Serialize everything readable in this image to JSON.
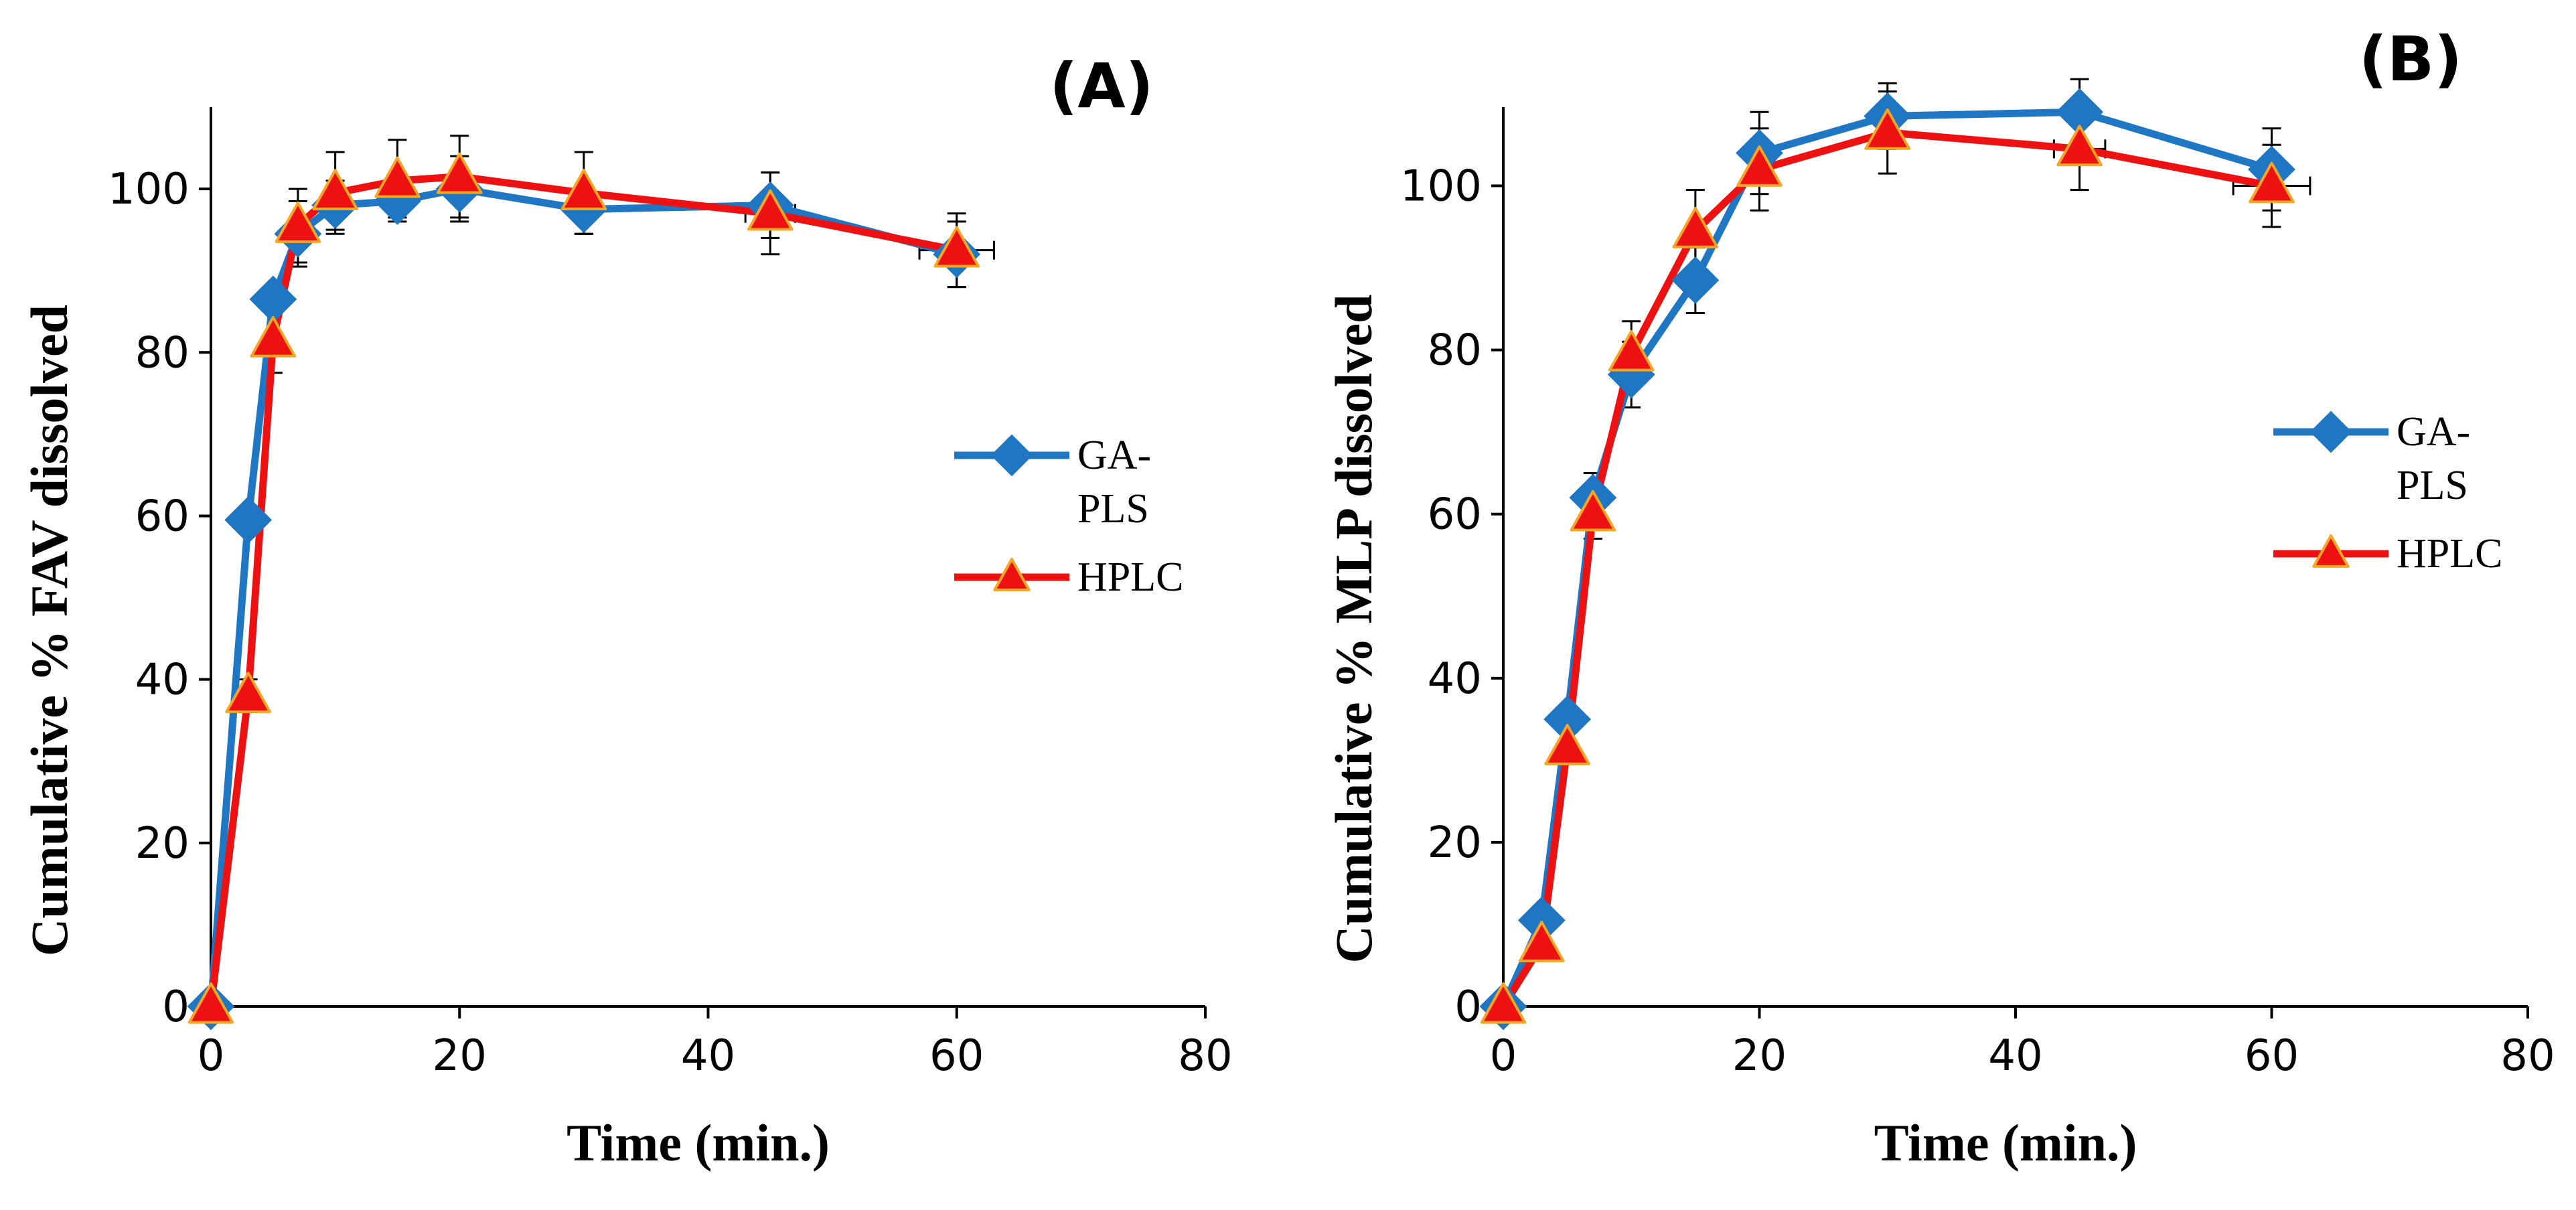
{
  "chart_data": [
    {
      "type": "line",
      "panel_label": "(A)",
      "title": "",
      "xlabel": "Time (min.)",
      "ylabel": "Cumulative % FAV dissolved",
      "xlim": [
        0,
        80
      ],
      "ylim": [
        0,
        110
      ],
      "x_ticks": [
        0,
        20,
        40,
        60,
        80
      ],
      "y_ticks": [
        0,
        20,
        40,
        60,
        80,
        100
      ],
      "grid": false,
      "legend": {
        "position": "right",
        "entries": [
          "GA-PLS",
          "HPLC"
        ]
      },
      "series": [
        {
          "name": "GA-PLS",
          "legend_lines": [
            "GA-",
            "PLS"
          ],
          "color": "#1f77c4",
          "marker": "diamond",
          "x": [
            0,
            3,
            5,
            7,
            10,
            15,
            20,
            30,
            45,
            60
          ],
          "values": [
            0,
            59.5,
            86.5,
            94.5,
            98,
            98.5,
            100,
            97.5,
            98,
            92
          ],
          "y_err": [
            0,
            0,
            0,
            4,
            3,
            2,
            4,
            3,
            4,
            4
          ]
        },
        {
          "name": "HPLC",
          "legend_lines": [
            "HPLC"
          ],
          "color": "#ee1111",
          "marker": "triangle",
          "x": [
            0,
            3,
            5,
            7,
            10,
            15,
            20,
            30,
            45,
            60
          ],
          "values": [
            0,
            38,
            81.5,
            95.5,
            99.5,
            101,
            101.5,
            99.5,
            97,
            92.5
          ],
          "y_err": [
            0,
            2,
            4,
            4.5,
            5,
            5,
            5,
            5,
            5,
            4.5
          ],
          "x_err": [
            0,
            0,
            0,
            0,
            0,
            0,
            0,
            0,
            2,
            3
          ]
        }
      ]
    },
    {
      "type": "line",
      "panel_label": "(B)",
      "title": "",
      "xlabel": "Time (min.)",
      "ylabel": "Cumulative % MLP dissolved",
      "xlim": [
        0,
        80
      ],
      "ylim": [
        0,
        110
      ],
      "x_ticks": [
        0,
        20,
        40,
        60,
        80
      ],
      "y_ticks": [
        0,
        20,
        40,
        60,
        80,
        100
      ],
      "grid": false,
      "legend": {
        "position": "right",
        "entries": [
          "GA-PLS",
          "HPLC"
        ]
      },
      "series": [
        {
          "name": "GA-PLS",
          "legend_lines": [
            "GA-",
            "PLS"
          ],
          "color": "#1f77c4",
          "marker": "diamond",
          "x": [
            0,
            3,
            5,
            7,
            10,
            15,
            20,
            30,
            45,
            60
          ],
          "values": [
            0,
            10.5,
            35,
            62,
            77,
            88.5,
            104,
            108.5,
            109,
            102
          ],
          "y_err": [
            0,
            0,
            0,
            3,
            4,
            4,
            5,
            4,
            4,
            5
          ]
        },
        {
          "name": "HPLC",
          "legend_lines": [
            "HPLC"
          ],
          "color": "#ee1111",
          "marker": "triangle",
          "x": [
            0,
            3,
            5,
            7,
            10,
            15,
            20,
            30,
            45,
            60
          ],
          "values": [
            0,
            7.5,
            31.5,
            60,
            79.5,
            94.5,
            102,
            106.5,
            104.5,
            100
          ],
          "y_err": [
            0,
            0,
            0,
            3,
            4,
            5,
            5,
            5,
            5,
            5
          ],
          "x_err": [
            0,
            0,
            0,
            0,
            0,
            0,
            0,
            0,
            2,
            3
          ]
        }
      ]
    }
  ]
}
